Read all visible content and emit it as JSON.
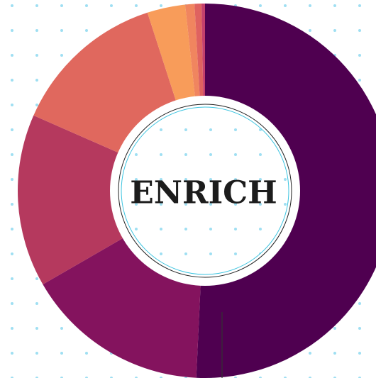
{
  "chart_data": {
    "type": "donut",
    "center_label": "ENRICH",
    "values": [
      51,
      16,
      15,
      13.5,
      3.3,
      0.8,
      0.6,
      0.3
    ],
    "colors": [
      "#4f0050",
      "#84135e",
      "#b5395e",
      "#e0685e",
      "#f89c5a",
      "#f0855f",
      "#df6260",
      "#c4406c"
    ]
  }
}
